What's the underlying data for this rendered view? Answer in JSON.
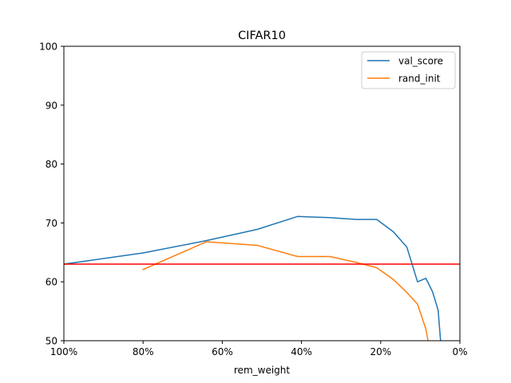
{
  "chart_data": {
    "type": "line",
    "title": "CIFAR10",
    "xlabel": "rem_weight",
    "ylabel": "",
    "xlim": [
      100,
      0
    ],
    "ylim": [
      50,
      100
    ],
    "x_tick_values": [
      100,
      80,
      60,
      40,
      20,
      0
    ],
    "x_tick_labels": [
      "100%",
      "80%",
      "60%",
      "40%",
      "20%",
      "0%"
    ],
    "y_ticks": [
      50,
      60,
      70,
      80,
      90,
      100
    ],
    "y_tick_labels": [
      "50",
      "60",
      "70",
      "80",
      "90",
      "100"
    ],
    "grid": false,
    "legend_position": "top-right",
    "series": [
      {
        "name": "val_score",
        "color": "#1f77b4",
        "x": [
          100,
          80,
          64,
          51.2,
          41,
          32.8,
          26.2,
          21,
          16.8,
          13.4,
          10.7,
          8.6,
          6.9,
          5.5,
          4.4
        ],
        "y": [
          63.0,
          64.9,
          67.0,
          68.9,
          71.1,
          70.9,
          70.6,
          70.6,
          68.5,
          65.9,
          60.0,
          60.6,
          58.3,
          55.2,
          46.0
        ]
      },
      {
        "name": "rand_init",
        "color": "#ff7f0e",
        "x": [
          80,
          64,
          51.2,
          41,
          32.8,
          26.2,
          21,
          16.8,
          13.4,
          10.7,
          8.6,
          6.9
        ],
        "y": [
          62.1,
          66.8,
          66.2,
          64.3,
          64.3,
          63.3,
          62.4,
          60.4,
          58.2,
          56.2,
          52.0,
          46.0
        ]
      }
    ],
    "reference_line": {
      "y": 63.0,
      "color": "#ff0000"
    }
  }
}
